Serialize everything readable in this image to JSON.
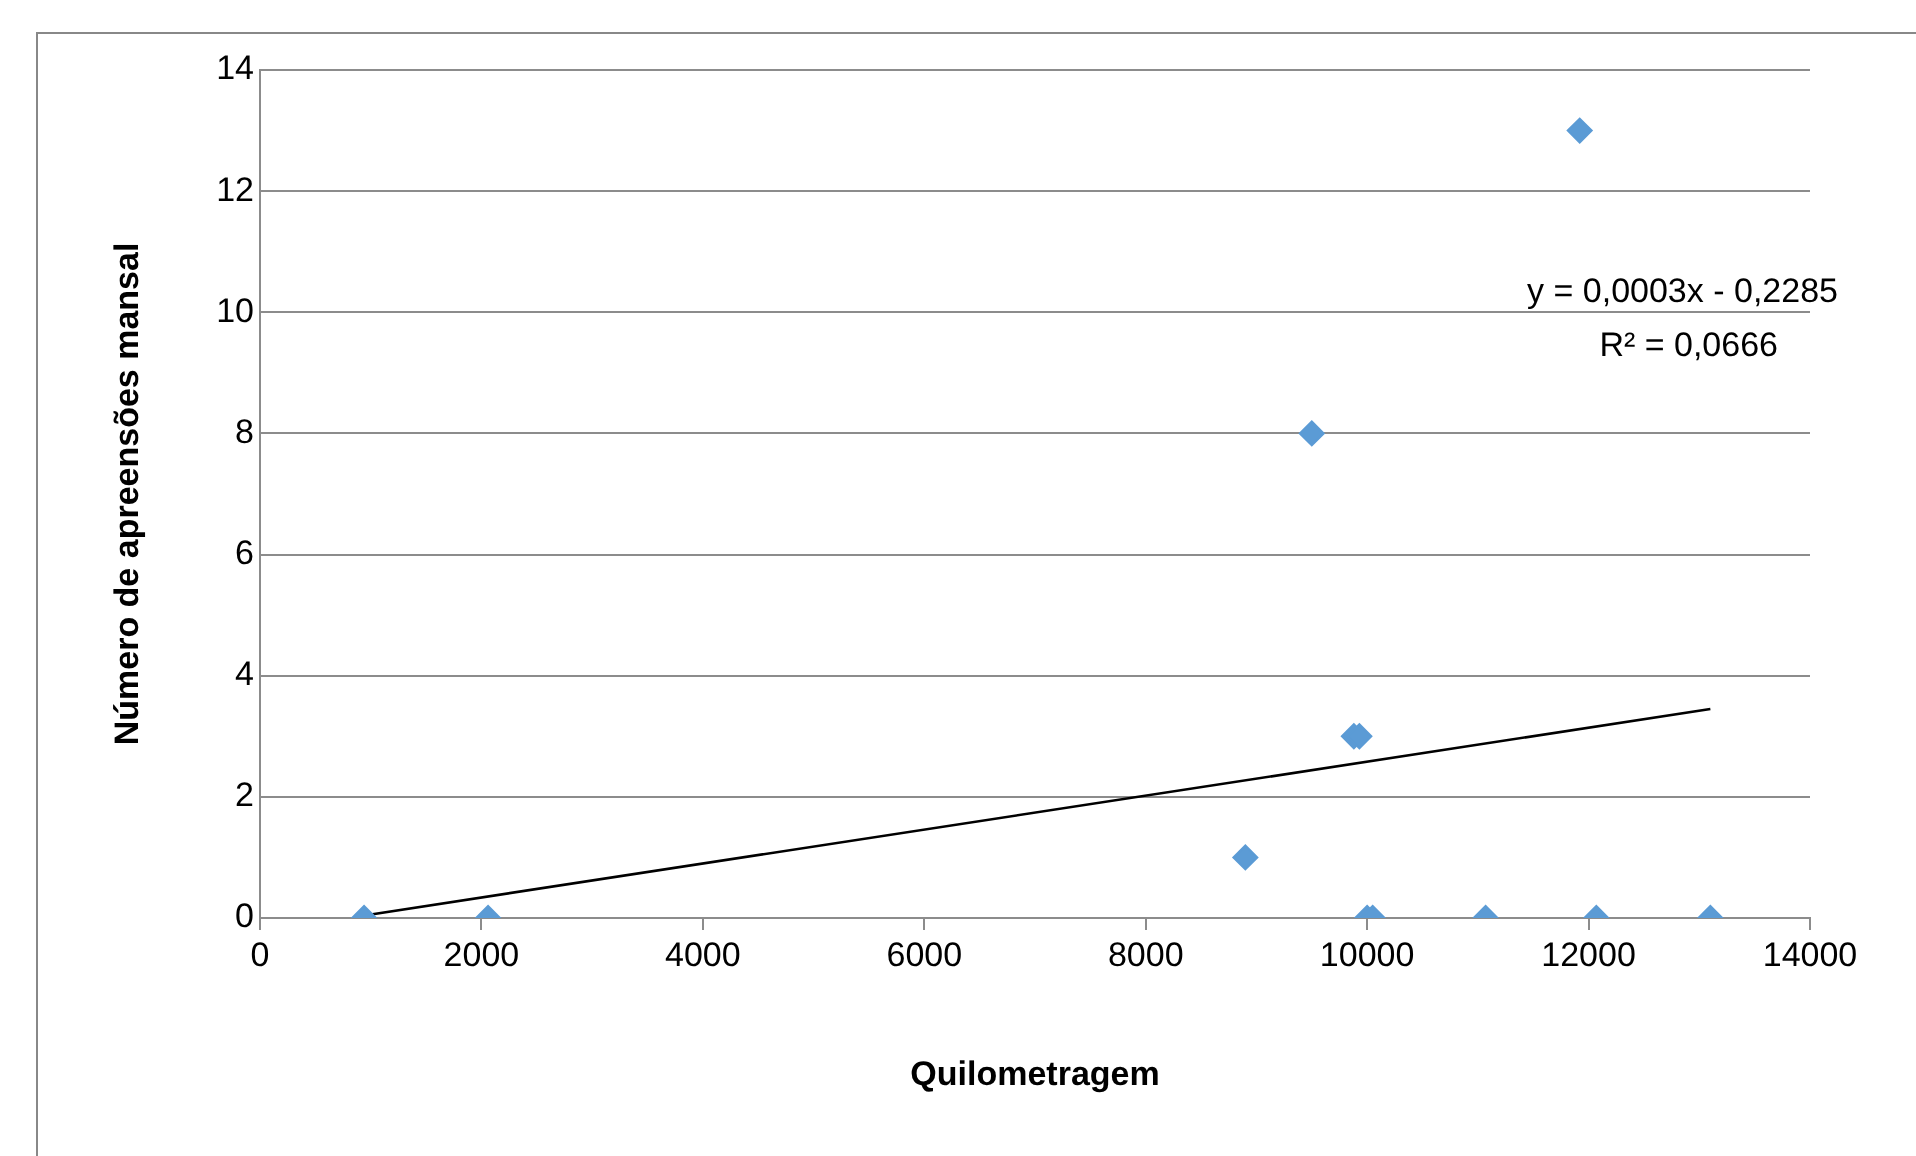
{
  "chart_data": {
    "type": "scatter",
    "xlabel": "Quilometragem",
    "ylabel": "Número de apreensões mansal",
    "xlim": [
      0,
      14000
    ],
    "xticks": [
      0,
      2000,
      4000,
      6000,
      8000,
      10000,
      12000,
      14000
    ],
    "ylim": [
      0,
      14
    ],
    "yticks": [
      0,
      2,
      4,
      6,
      8,
      10,
      12,
      14
    ],
    "grid": "y",
    "legend": false,
    "series": [
      {
        "marker": "diamond",
        "color": "#5b9bd5",
        "x": [
          940,
          2060,
          8900,
          9500,
          9880,
          9930,
          10000,
          10050,
          11070,
          11920,
          12070,
          13100
        ],
        "values": [
          0,
          0,
          1,
          8,
          3,
          3,
          0,
          0,
          0,
          13,
          0,
          0
        ]
      },
      {
        "type": "line",
        "marker": "none",
        "color": "#000000",
        "x": [
          900,
          13100
        ],
        "values": [
          0.03,
          3.45
        ]
      }
    ],
    "annotations": [
      "y = 0,0003x - 0,2285",
      "R² = 0,0666"
    ]
  }
}
